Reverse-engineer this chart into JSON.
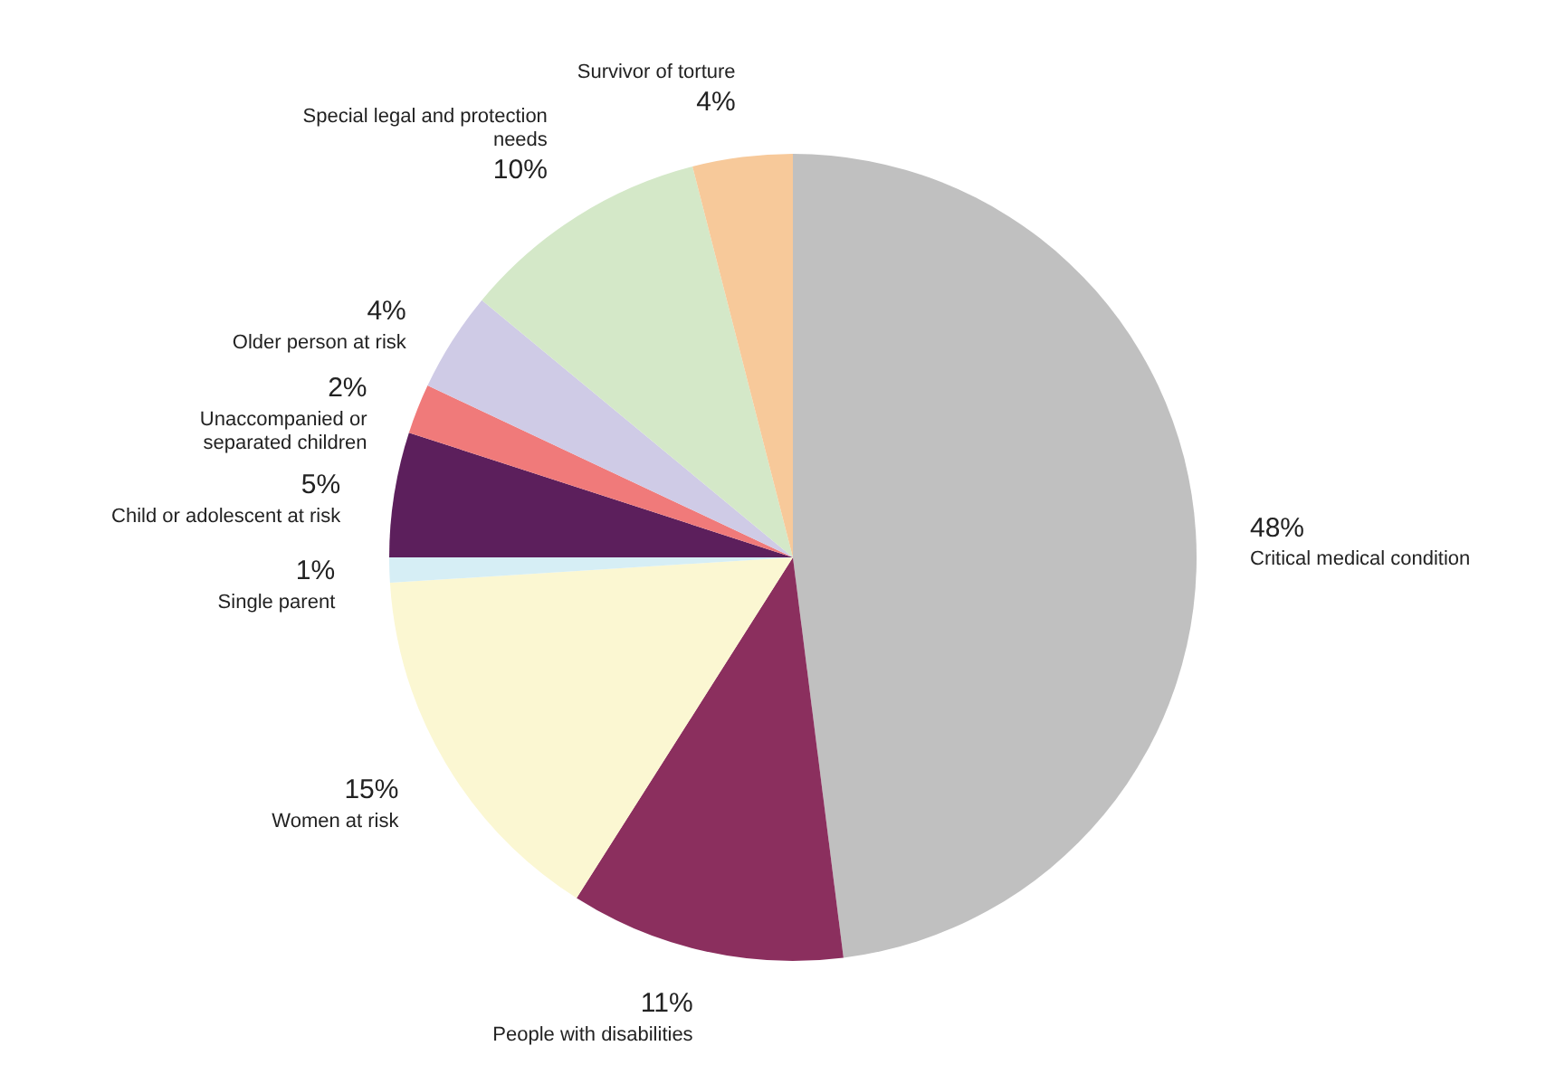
{
  "chart_data": {
    "type": "pie",
    "categories": [
      "Critical medical condition",
      "People with disabilities",
      "Women at risk",
      "Single parent",
      "Child or adolescent at risk",
      "Unaccompanied or separated children",
      "Older person at risk",
      "Special legal and protection needs",
      "Survivor of torture"
    ],
    "values": [
      48,
      11,
      15,
      1,
      5,
      2,
      4,
      10,
      4
    ],
    "colors": [
      "#c0c0c0",
      "#8b2f5e",
      "#fbf7d2",
      "#d6eef5",
      "#5c1f5c",
      "#f07a7a",
      "#cfcbe6",
      "#d4e8c8",
      "#f7c99a"
    ],
    "value_labels": [
      "48%",
      "11%",
      "15%",
      "1%",
      "5%",
      "2%",
      "4%",
      "10%",
      "4%"
    ],
    "legend": false
  }
}
